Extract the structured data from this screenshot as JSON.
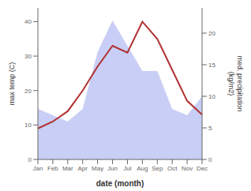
{
  "chart_data": {
    "type": "line",
    "xlabel": "date (month)",
    "ylabel": "max temp (C)",
    "y2label": "med. precipitation\n(kg/m2)",
    "categories": [
      "Jan",
      "Feb",
      "Mar",
      "Apr",
      "May",
      "Jun",
      "Jul",
      "Aug",
      "Sep",
      "Oct",
      "Nov",
      "Dec"
    ],
    "series": [
      {
        "type": "area",
        "axis": "y2",
        "color": "#c8cef5",
        "values": [
          8.0,
          7.0,
          6.0,
          8.0,
          17.0,
          22.0,
          18.0,
          14.0,
          14.0,
          8.0,
          7.0,
          10.0
        ]
      },
      {
        "type": "line",
        "color": "#b03030",
        "values": [
          9.0,
          11.0,
          14.0,
          20.0,
          27.0,
          33.0,
          31.0,
          40.0,
          35.0,
          26.0,
          17.0,
          13.0
        ]
      }
    ],
    "ylim": [
      0,
      44
    ],
    "yticks": [
      0,
      10,
      20,
      30,
      40
    ],
    "y2lim": [
      0,
      24.0
    ],
    "y2ticks": [
      0,
      5,
      10,
      15,
      20
    ],
    "grid": false
  }
}
